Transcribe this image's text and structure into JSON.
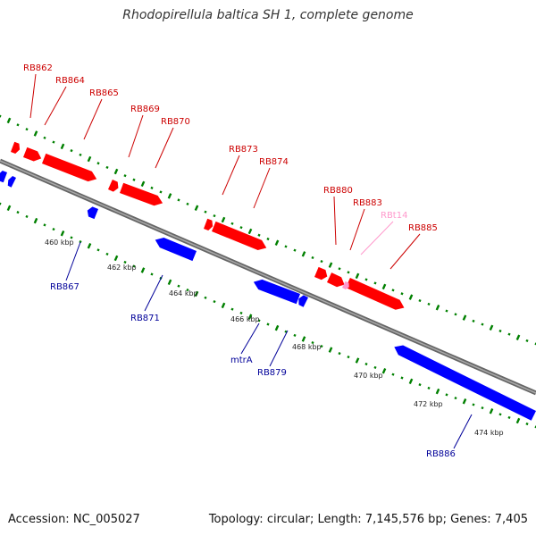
{
  "title": "Rhodopirellula baltica SH 1, complete genome",
  "footer": {
    "accession_label": "Accession:",
    "accession": "NC_005027",
    "topology_label": "Topology:",
    "topology": "circular",
    "length_label": "Length:",
    "length": "7,145,576 bp",
    "genes_label": "Genes:",
    "genes": "7,405"
  },
  "colors": {
    "forward_gene": "#ff0000",
    "reverse_gene": "#0000ff",
    "rna_gene": "#ff99cc",
    "backbone": "#808080",
    "gc_skew_dots": "#008000",
    "forward_label": "#cc0000",
    "reverse_label": "#000099"
  },
  "ticks": [
    {
      "label": "460 kbp"
    },
    {
      "label": "462 kbp"
    },
    {
      "label": "464 kbp"
    },
    {
      "label": "466 kbp"
    },
    {
      "label": "468 kbp"
    },
    {
      "label": "470 kbp"
    },
    {
      "label": "472 kbp"
    },
    {
      "label": "474 kbp"
    }
  ],
  "forward_gene_labels": [
    "RB862",
    "RB864",
    "RB865",
    "RB869",
    "RB870",
    "RB873",
    "RB874",
    "RB880",
    "RB883",
    "RBt14",
    "RB885"
  ],
  "reverse_gene_labels": [
    "RB867",
    "RB871",
    "mtrA",
    "RB879",
    "RB886"
  ]
}
